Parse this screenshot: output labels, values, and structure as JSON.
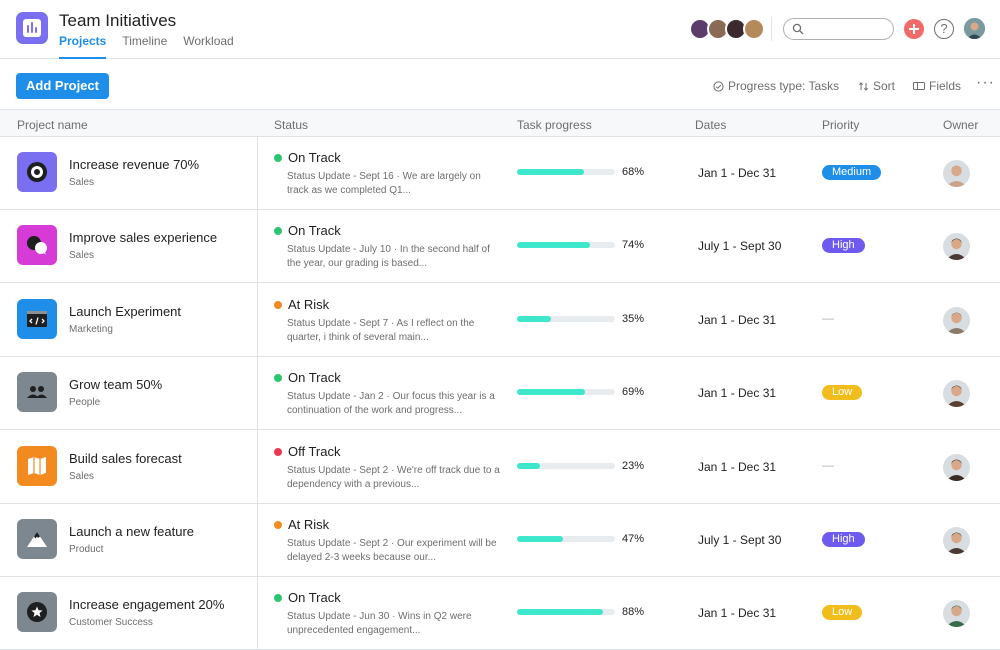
{
  "header": {
    "title": "Team Initiatives",
    "tabs": [
      {
        "label": "Projects",
        "active": true
      },
      {
        "label": "Timeline",
        "active": false
      },
      {
        "label": "Workload",
        "active": false
      }
    ],
    "search_placeholder": "",
    "plus_label": "+",
    "help_label": "?"
  },
  "toolbar": {
    "add_project_label": "Add Project",
    "progress_type_label": "Progress type: Tasks",
    "sort_label": "Sort",
    "fields_label": "Fields",
    "more_label": "···"
  },
  "table": {
    "columns": [
      "Project name",
      "Status",
      "Task progress",
      "Dates",
      "Priority",
      "Owner"
    ],
    "rows": [
      {
        "name": "Increase revenue 70%",
        "team": "Sales",
        "icon": "target-icon",
        "icon_color": "#7a6ff0",
        "status": "On Track",
        "status_color": "#2cc56f",
        "update": "Status Update - Sept 16 · We are largely on track as we completed Q1...",
        "progress": 68,
        "progress_label": "68%",
        "dates": "Jan 1 - Dec 31",
        "priority": "Medium",
        "priority_color": "#1f8ee8",
        "owner_color": "#c9a38a"
      },
      {
        "name": "Improve sales experience",
        "team": "Sales",
        "icon": "chat-bubbles-icon",
        "icon_color": "#d63bd6",
        "status": "On Track",
        "status_color": "#2cc56f",
        "update": "Status Update - July 10 · In the second half of the year, our grading is based...",
        "progress": 74,
        "progress_label": "74%",
        "dates": "July 1 - Sept 30",
        "priority": "High",
        "priority_color": "#6f5af0",
        "owner_color": "#4a3a33"
      },
      {
        "name": "Launch Experiment",
        "team": "Marketing",
        "icon": "code-window-icon",
        "icon_color": "#1f8ee8",
        "status": "At Risk",
        "status_color": "#f38a1f",
        "update": "Status Update - Sept 7 · As I reflect on the quarter, i think of several main...",
        "progress": 35,
        "progress_label": "35%",
        "dates": "Jan 1 - Dec 31",
        "priority": "—",
        "priority_color": "",
        "owner_color": "#8a7a6a"
      },
      {
        "name": "Grow team 50%",
        "team": "People",
        "icon": "people-icon",
        "icon_color": "#7d8790",
        "status": "On Track",
        "status_color": "#2cc56f",
        "update": "Status Update - Jan 2 · Our focus this year is a continuation of the work and progress...",
        "progress": 69,
        "progress_label": "69%",
        "dates": "Jan 1 - Dec 31",
        "priority": "Low",
        "priority_color": "#f1bd1c",
        "owner_color": "#5a4030"
      },
      {
        "name": "Build sales forecast",
        "team": "Sales",
        "icon": "map-icon",
        "icon_color": "#f38a1f",
        "status": "Off Track",
        "status_color": "#e8384f",
        "update": "Status Update - Sept 2 · We're off track due to a dependency with a previous...",
        "progress": 23,
        "progress_label": "23%",
        "dates": "Jan 1 - Dec 31",
        "priority": "—",
        "priority_color": "",
        "owner_color": "#3a2a24"
      },
      {
        "name": "Launch a new feature",
        "team": "Product",
        "icon": "mountain-icon",
        "icon_color": "#7d8790",
        "status": "At Risk",
        "status_color": "#f38a1f",
        "update": "Status Update - Sept 2 · Our experiment will be delayed 2-3 weeks because our...",
        "progress": 47,
        "progress_label": "47%",
        "dates": "July 1 - Sept 30",
        "priority": "High",
        "priority_color": "#6f5af0",
        "owner_color": "#4a3a33"
      },
      {
        "name": "Increase engagement 20%",
        "team": "Customer Success",
        "icon": "star-badge-icon",
        "icon_color": "#7d8790",
        "status": "On Track",
        "status_color": "#2cc56f",
        "update": "Status Update - Jun 30 · Wins in Q2 were unprecedented engagement...",
        "progress": 88,
        "progress_label": "88%",
        "dates": "Jan 1 - Dec 31",
        "priority": "Low",
        "priority_color": "#f1bd1c",
        "owner_color": "#3a6a4a"
      }
    ]
  },
  "colors": {
    "accent": "#1f8ee8",
    "progress": "#3ee7c9",
    "on_track": "#2cc56f",
    "at_risk": "#f38a1f",
    "off_track": "#e8384f"
  }
}
